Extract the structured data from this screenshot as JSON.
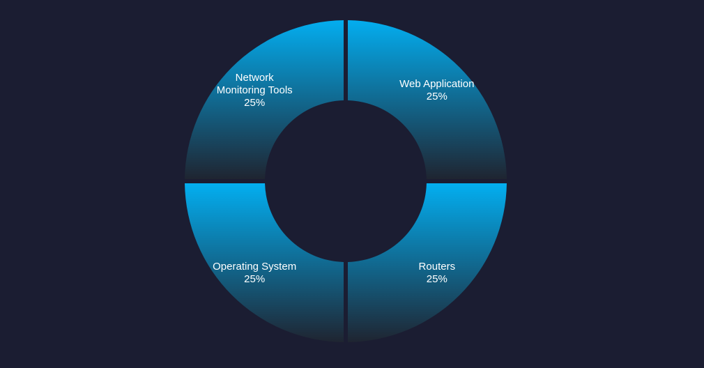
{
  "chart_data": {
    "type": "pie",
    "style": "donut",
    "categories": [
      "Web Application",
      "Routers",
      "Operating System",
      "Network Monitoring Tools"
    ],
    "values": [
      25,
      25,
      25,
      25
    ],
    "label_lines": [
      [
        "Web Application",
        "25%"
      ],
      [
        "Routers",
        "25%"
      ],
      [
        "Operating System",
        "25%"
      ],
      [
        "Network",
        "Monitoring Tools",
        "25%"
      ]
    ],
    "title": "",
    "legend": "none",
    "colors": {
      "background": "#1b1d32",
      "slice_light": "#03aef0",
      "slice_dark": "#1f2430"
    }
  }
}
